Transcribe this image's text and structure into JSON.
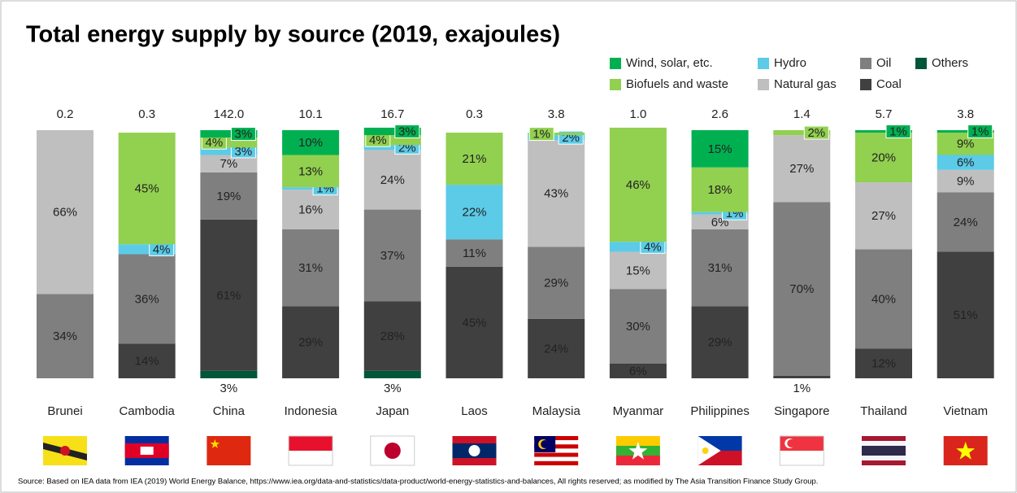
{
  "chart_data": {
    "type": "stacked_bar_100",
    "title": "Total energy supply by source (2019, exajoules)",
    "source": "Source: Based on IEA  data from IEA  (2019) World Energy Balance, https://www.iea.org/data-and-statistics/data-product/world-energy-statistics-and-balances, All rights reserved; as modified by The Asia Transition Finance Study Group.",
    "categories": [
      "Brunei",
      "Cambodia",
      "China",
      "Indonesia",
      "Japan",
      "Laos",
      "Malaysia",
      "Myanmar",
      "Philippines",
      "Singapore",
      "Thailand",
      "Vietnam"
    ],
    "ylim": [
      0,
      100
    ],
    "totals": {
      "values": [
        0.2,
        0.3,
        142.0,
        10.1,
        16.7,
        0.3,
        3.8,
        1.0,
        2.6,
        1.4,
        5.7,
        3.8
      ],
      "value_labels": [
        "0.2",
        "0.3",
        "142.0",
        "10.1",
        "16.7",
        "0.3",
        "3.8",
        "1.0",
        "2.6",
        "1.4",
        "5.7",
        "3.8"
      ]
    },
    "series": [
      {
        "name": "Others",
        "color": "#00563b",
        "values": [
          null,
          null,
          3,
          null,
          3,
          null,
          null,
          null,
          null,
          null,
          null,
          null
        ],
        "value_labels": [
          null,
          null,
          "3%",
          null,
          "3%",
          null,
          null,
          null,
          null,
          null,
          null,
          null
        ]
      },
      {
        "name": "Coal",
        "color": "#404040",
        "values": [
          null,
          14,
          61,
          29,
          28,
          45,
          24,
          6,
          29,
          1,
          12,
          51
        ],
        "value_labels": [
          null,
          "14%",
          "61%",
          "29%",
          "28%",
          "45%",
          "24%",
          "6%",
          "29%",
          "1%",
          "12%",
          "51%"
        ]
      },
      {
        "name": "Oil",
        "color": "#7f7f7f",
        "values": [
          34,
          36,
          19,
          31,
          37,
          11,
          29,
          30,
          31,
          70,
          40,
          24
        ],
        "value_labels": [
          "34%",
          "36%",
          "19%",
          "31%",
          "37%",
          "11%",
          "29%",
          "30%",
          "31%",
          "70%",
          "40%",
          "24%"
        ]
      },
      {
        "name": "Natural gas",
        "color": "#bfbfbf",
        "values": [
          66,
          null,
          7,
          16,
          24,
          null,
          43,
          15,
          6,
          27,
          27,
          9
        ],
        "value_labels": [
          "66%",
          null,
          "7%",
          "16%",
          "24%",
          null,
          "43%",
          "15%",
          "6%",
          "27%",
          "27%",
          "9%"
        ]
      },
      {
        "name": "Hydro",
        "color": "#5bcbe8",
        "values": [
          null,
          4,
          3,
          1,
          2,
          22,
          2,
          4,
          1,
          null,
          null,
          6
        ],
        "value_labels": [
          null,
          "4%",
          "3%",
          "1%",
          "2%",
          "22%",
          "2%",
          "4%",
          "1%",
          null,
          null,
          "6%"
        ]
      },
      {
        "name": "Biofuels and waste",
        "color": "#92d050",
        "values": [
          null,
          45,
          4,
          13,
          4,
          21,
          1,
          46,
          18,
          2,
          20,
          9
        ],
        "value_labels": [
          null,
          "45%",
          "4%",
          "13%",
          "4%",
          "21%",
          "1%",
          "46%",
          "18%",
          "2%",
          "20%",
          "9%"
        ]
      },
      {
        "name": "Wind, solar, etc.",
        "color": "#00b050",
        "values": [
          null,
          null,
          3,
          10,
          3,
          null,
          null,
          null,
          15,
          null,
          1,
          1
        ],
        "value_labels": [
          null,
          null,
          "3%",
          "10%",
          "3%",
          null,
          null,
          null,
          "15%",
          null,
          "1%",
          "1%"
        ]
      }
    ]
  }
}
